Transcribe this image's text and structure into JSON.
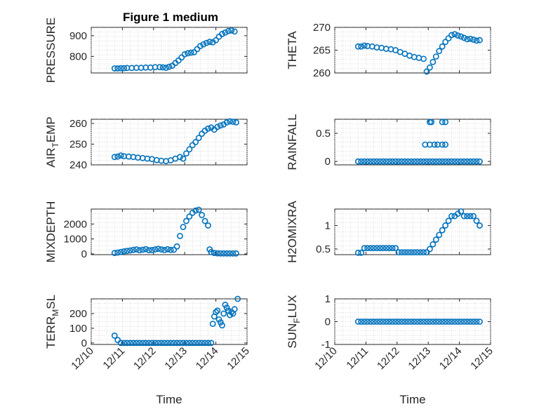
{
  "figure": {
    "title": "Figure 1 medium",
    "accent_color": "#0072bd"
  },
  "chart_data": [
    {
      "type": "scatter",
      "title": "Figure 1 medium",
      "ylabel": "PRESSURE",
      "xlabel": "",
      "xlim": [
        10,
        15
      ],
      "ylim": [
        720,
        940
      ],
      "yticks": [
        800,
        900
      ],
      "yticklabels": [
        "800",
        "900"
      ],
      "xticks": [],
      "xticklabels": [],
      "grid": true,
      "color": "#0072bd",
      "x": [
        10.75,
        10.85,
        10.95,
        11.05,
        11.15,
        11.3,
        11.45,
        11.6,
        11.75,
        11.9,
        12.05,
        12.2,
        12.3,
        12.4,
        12.5,
        12.6,
        12.7,
        12.8,
        12.9,
        13.0,
        13.1,
        13.2,
        13.3,
        13.4,
        13.5,
        13.6,
        13.7,
        13.8,
        13.9,
        14.0,
        14.1,
        14.2,
        14.3,
        14.4,
        14.5,
        14.6
      ],
      "y": [
        742,
        742,
        743,
        743,
        744,
        744,
        745,
        745,
        746,
        746,
        748,
        748,
        747,
        745,
        750,
        755,
        768,
        780,
        795,
        810,
        815,
        818,
        820,
        835,
        850,
        858,
        865,
        870,
        868,
        878,
        895,
        908,
        915,
        922,
        925,
        920
      ]
    },
    {
      "type": "scatter",
      "ylabel": "THETA",
      "xlabel": "",
      "xlim": [
        10,
        15
      ],
      "ylim": [
        260,
        270
      ],
      "yticks": [
        260,
        265,
        270
      ],
      "yticklabels": [
        "260",
        "265",
        "270"
      ],
      "xticks": [],
      "xticklabels": [],
      "grid": true,
      "color": "#0072bd",
      "x": [
        10.75,
        10.85,
        10.95,
        11.05,
        11.2,
        11.35,
        11.5,
        11.65,
        11.8,
        11.95,
        12.1,
        12.25,
        12.4,
        12.55,
        12.7,
        12.85,
        12.95,
        13.05,
        13.15,
        13.25,
        13.35,
        13.45,
        13.55,
        13.65,
        13.75,
        13.85,
        13.95,
        14.05,
        14.15,
        14.25,
        14.35,
        14.45,
        14.55,
        14.65
      ],
      "y": [
        265.8,
        265.8,
        266.0,
        265.9,
        265.8,
        265.6,
        265.5,
        265.3,
        265.2,
        265.0,
        264.6,
        264.2,
        263.8,
        263.5,
        263.3,
        263.1,
        260.3,
        261.2,
        262.4,
        263.6,
        264.8,
        265.8,
        266.8,
        267.6,
        268.3,
        268.5,
        268.2,
        268.0,
        267.7,
        267.4,
        267.5,
        267.3,
        267.1,
        267.2
      ]
    },
    {
      "type": "scatter",
      "ylabel": "AIR_TEMP",
      "xlabel": "",
      "xlim": [
        10,
        15
      ],
      "ylim": [
        240,
        262
      ],
      "yticks": [
        240,
        250,
        260
      ],
      "yticklabels": [
        "240",
        "250",
        "260"
      ],
      "xticks": [],
      "xticklabels": [],
      "grid": true,
      "color": "#0072bd",
      "x": [
        10.75,
        10.85,
        10.95,
        11.05,
        11.2,
        11.35,
        11.5,
        11.65,
        11.8,
        11.95,
        12.1,
        12.25,
        12.4,
        12.55,
        12.7,
        12.85,
        12.95,
        13.05,
        13.15,
        13.25,
        13.35,
        13.45,
        13.55,
        13.65,
        13.75,
        13.85,
        13.95,
        14.05,
        14.15,
        14.25,
        14.35,
        14.45,
        14.55,
        14.65
      ],
      "y": [
        243.8,
        244.0,
        244.5,
        244.2,
        244.0,
        243.8,
        243.5,
        243.3,
        243.0,
        242.8,
        242.3,
        242.0,
        241.8,
        242.2,
        243.0,
        243.8,
        243.0,
        245.5,
        247.5,
        249.5,
        251.0,
        253.0,
        255.0,
        256.5,
        257.5,
        258.0,
        257.0,
        258.3,
        259.0,
        259.5,
        260.5,
        261.0,
        260.8,
        260.5
      ]
    },
    {
      "type": "scatter",
      "ylabel": "RAINFALL",
      "xlabel": "",
      "xlim": [
        10,
        15
      ],
      "ylim": [
        -0.06,
        0.75
      ],
      "yticks": [
        0,
        0.5
      ],
      "yticklabels": [
        "0",
        "0.5"
      ],
      "xticks": [],
      "xticklabels": [],
      "grid": true,
      "color": "#0072bd",
      "x": [
        10.75,
        10.85,
        10.95,
        11.05,
        11.15,
        11.25,
        11.35,
        11.45,
        11.55,
        11.65,
        11.75,
        11.85,
        11.95,
        12.05,
        12.15,
        12.25,
        12.35,
        12.45,
        12.55,
        12.65,
        12.75,
        12.85,
        12.95,
        13.05,
        13.15,
        13.25,
        13.35,
        13.45,
        13.55,
        13.65,
        13.75,
        13.85,
        13.95,
        14.05,
        14.15,
        14.25,
        14.35,
        14.45,
        14.55,
        14.65,
        12.9,
        13.05,
        13.2,
        13.3,
        13.45,
        13.55,
        13.05,
        13.1,
        13.45,
        13.55
      ],
      "y": [
        0,
        0,
        0,
        0,
        0,
        0,
        0,
        0,
        0,
        0,
        0,
        0,
        0,
        0,
        0,
        0,
        0,
        0,
        0,
        0,
        0,
        0,
        0,
        0,
        0,
        0,
        0,
        0,
        0,
        0,
        0,
        0,
        0,
        0,
        0,
        0,
        0,
        0,
        0,
        0,
        0.3,
        0.3,
        0.3,
        0.3,
        0.3,
        0.3,
        0.7,
        0.7,
        0.7,
        0.7
      ]
    },
    {
      "type": "scatter",
      "ylabel": "MIXDEPTH",
      "xlabel": "",
      "xlim": [
        10,
        15
      ],
      "ylim": [
        -50,
        3000
      ],
      "yticks": [
        0,
        1000,
        2000
      ],
      "yticklabels": [
        "0",
        "1000",
        "2000"
      ],
      "xticks": [],
      "xticklabels": [],
      "grid": true,
      "color": "#0072bd",
      "x": [
        10.75,
        10.85,
        10.95,
        11.05,
        11.15,
        11.25,
        11.35,
        11.45,
        11.55,
        11.65,
        11.75,
        11.85,
        11.95,
        12.05,
        12.15,
        12.25,
        12.35,
        12.45,
        12.55,
        12.65,
        12.75,
        12.85,
        12.95,
        13.05,
        13.15,
        13.25,
        13.35,
        13.45,
        13.55,
        13.65,
        13.75,
        13.8,
        13.85,
        13.95,
        14.05,
        14.15,
        14.25,
        14.35,
        14.45,
        14.55,
        14.65
      ],
      "y": [
        60,
        90,
        130,
        170,
        200,
        230,
        270,
        300,
        250,
        280,
        320,
        250,
        260,
        300,
        340,
        300,
        260,
        310,
        270,
        280,
        500,
        1200,
        1800,
        2200,
        2500,
        2750,
        2900,
        2950,
        2600,
        2200,
        1900,
        300,
        120,
        60,
        40,
        30,
        30,
        30,
        30,
        30,
        30
      ]
    },
    {
      "type": "scatter",
      "ylabel": "H2OMIXRA",
      "xlabel": "",
      "xlim": [
        10,
        15
      ],
      "ylim": [
        0.38,
        1.35
      ],
      "yticks": [
        0.5,
        1
      ],
      "yticklabels": [
        "0.5",
        "1"
      ],
      "xticks": [],
      "xticklabels": [],
      "grid": true,
      "color": "#0072bd",
      "x": [
        10.75,
        10.85,
        10.95,
        11.05,
        11.15,
        11.25,
        11.35,
        11.45,
        11.55,
        11.65,
        11.75,
        11.85,
        11.95,
        12.05,
        12.15,
        12.25,
        12.35,
        12.45,
        12.55,
        12.65,
        12.75,
        12.85,
        12.95,
        13.05,
        13.15,
        13.25,
        13.35,
        13.45,
        13.55,
        13.65,
        13.75,
        13.85,
        13.95,
        14.05,
        14.15,
        14.25,
        14.35,
        14.45,
        14.55,
        14.65
      ],
      "y": [
        0.42,
        0.42,
        0.52,
        0.52,
        0.52,
        0.52,
        0.52,
        0.52,
        0.52,
        0.52,
        0.52,
        0.52,
        0.52,
        0.43,
        0.43,
        0.43,
        0.43,
        0.43,
        0.43,
        0.43,
        0.43,
        0.43,
        0.43,
        0.5,
        0.6,
        0.7,
        0.8,
        0.9,
        1.0,
        1.1,
        1.2,
        1.2,
        1.25,
        1.3,
        1.2,
        1.2,
        1.2,
        1.2,
        1.1,
        1.0
      ]
    },
    {
      "type": "scatter",
      "ylabel": "TERR_MSL",
      "xlabel": "Time",
      "xlim": [
        10,
        15
      ],
      "ylim": [
        -10,
        300
      ],
      "yticks": [
        0,
        100,
        200
      ],
      "yticklabels": [
        "0",
        "100",
        "200"
      ],
      "xticks": [
        10,
        11,
        12,
        13,
        14,
        15
      ],
      "xticklabels": [
        "12/10",
        "12/11",
        "12/12",
        "12/13",
        "12/14",
        "12/15"
      ],
      "grid": true,
      "color": "#0072bd",
      "x": [
        10.75,
        10.85,
        10.95,
        11.05,
        11.15,
        11.25,
        11.35,
        11.45,
        11.55,
        11.65,
        11.75,
        11.85,
        11.95,
        12.05,
        12.15,
        12.25,
        12.35,
        12.45,
        12.55,
        12.65,
        12.75,
        12.85,
        12.95,
        13.05,
        13.15,
        13.25,
        13.35,
        13.45,
        13.55,
        13.65,
        13.75,
        13.85,
        13.9,
        13.95,
        14.0,
        14.05,
        14.1,
        14.15,
        14.2,
        14.25,
        14.3,
        14.35,
        14.4,
        14.45,
        14.5,
        14.55,
        14.6,
        14.7
      ],
      "y": [
        50,
        20,
        0,
        0,
        0,
        0,
        0,
        0,
        0,
        0,
        0,
        0,
        0,
        0,
        0,
        0,
        0,
        0,
        0,
        0,
        0,
        0,
        0,
        0,
        0,
        0,
        0,
        0,
        0,
        0,
        0,
        0,
        130,
        180,
        210,
        220,
        160,
        140,
        120,
        200,
        260,
        240,
        220,
        190,
        210,
        200,
        230,
        300
      ]
    },
    {
      "type": "scatter",
      "ylabel": "SUN_FLUX",
      "xlabel": "Time",
      "xlim": [
        10,
        15
      ],
      "ylim": [
        -1,
        1
      ],
      "yticks": [
        -1,
        0,
        1
      ],
      "yticklabels": [
        "-1",
        "0",
        "1"
      ],
      "xticks": [
        10,
        11,
        12,
        13,
        14,
        15
      ],
      "xticklabels": [
        "12/10",
        "12/11",
        "12/12",
        "12/13",
        "12/14",
        "12/15"
      ],
      "grid": true,
      "color": "#0072bd",
      "x": [
        10.75,
        10.85,
        10.95,
        11.05,
        11.15,
        11.25,
        11.35,
        11.45,
        11.55,
        11.65,
        11.75,
        11.85,
        11.95,
        12.05,
        12.15,
        12.25,
        12.35,
        12.45,
        12.55,
        12.65,
        12.75,
        12.85,
        12.95,
        13.05,
        13.15,
        13.25,
        13.35,
        13.45,
        13.55,
        13.65,
        13.75,
        13.85,
        13.95,
        14.05,
        14.15,
        14.25,
        14.35,
        14.45,
        14.55,
        14.65
      ],
      "y": [
        0,
        0,
        0,
        0,
        0,
        0,
        0,
        0,
        0,
        0,
        0,
        0,
        0,
        0,
        0,
        0,
        0,
        0,
        0,
        0,
        0,
        0,
        0,
        0,
        0,
        0,
        0,
        0,
        0,
        0,
        0,
        0,
        0,
        0,
        0,
        0,
        0,
        0,
        0,
        0
      ]
    }
  ]
}
